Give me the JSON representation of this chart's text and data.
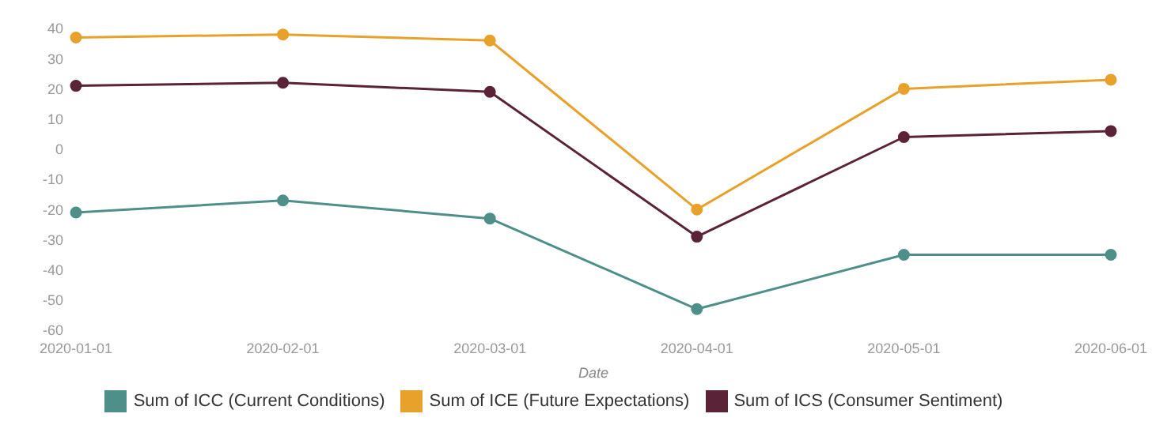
{
  "chart_data": {
    "type": "line",
    "xlabel": "Date",
    "categories": [
      "2020-01-01",
      "2020-02-01",
      "2020-03-01",
      "2020-04-01",
      "2020-05-01",
      "2020-06-01"
    ],
    "series": [
      {
        "name": "Sum of ICS (Consumer Sentiment)",
        "color": "#5b2337",
        "values": [
          21,
          22,
          19,
          -29,
          4,
          6
        ]
      },
      {
        "name": "Sum of ICE (Future Expectations)",
        "color": "#e8a12a",
        "values": [
          37,
          38,
          36,
          -20,
          20,
          23
        ]
      },
      {
        "name": "Sum of ICC (Current Conditions)",
        "color": "#4f8f89",
        "values": [
          -21,
          -17,
          -23,
          -53,
          -35,
          -35
        ]
      }
    ],
    "ylim": [
      -60,
      40
    ],
    "yticks": [
      -60,
      -50,
      -40,
      -30,
      -20,
      -10,
      0,
      10,
      20,
      30,
      40
    ],
    "grid": false,
    "legend": "bottom",
    "marker": "circle",
    "line_style": "solid"
  }
}
